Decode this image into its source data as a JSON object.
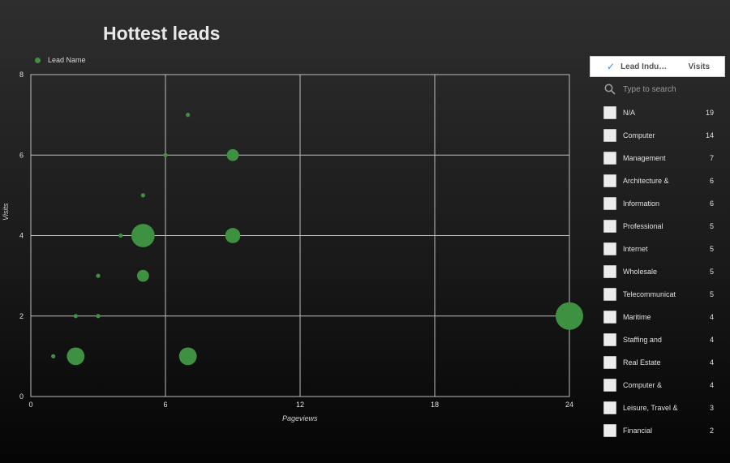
{
  "chart_data": {
    "type": "scatter",
    "title": "Hottest leads",
    "xlabel": "Pageviews",
    "ylabel": "Visits",
    "xlim": [
      0,
      24
    ],
    "ylim": [
      0,
      8
    ],
    "xticks": [
      "0",
      "6",
      "12",
      "18",
      "24"
    ],
    "yticks": [
      "0",
      "2",
      "4",
      "6",
      "8"
    ],
    "grid": true,
    "legend_position": "top-left",
    "series": [
      {
        "name": "Lead Name",
        "color": "#3d9140",
        "points": [
          {
            "x": 1,
            "y": 1,
            "size": 1
          },
          {
            "x": 2,
            "y": 1,
            "size": 4
          },
          {
            "x": 2,
            "y": 2,
            "size": 1
          },
          {
            "x": 3,
            "y": 2,
            "size": 1
          },
          {
            "x": 3,
            "y": 3,
            "size": 1
          },
          {
            "x": 4,
            "y": 4,
            "size": 1
          },
          {
            "x": 5,
            "y": 4,
            "size": 7
          },
          {
            "x": 5,
            "y": 3,
            "size": 2
          },
          {
            "x": 5,
            "y": 5,
            "size": 1
          },
          {
            "x": 6,
            "y": 6,
            "size": 1
          },
          {
            "x": 7,
            "y": 7,
            "size": 1
          },
          {
            "x": 7,
            "y": 1,
            "size": 4
          },
          {
            "x": 9,
            "y": 6,
            "size": 2
          },
          {
            "x": 9,
            "y": 4,
            "size": 3
          },
          {
            "x": 24,
            "y": 2,
            "size": 10
          }
        ]
      }
    ]
  },
  "legend": {
    "label": "Lead Name",
    "color": "#3d9140"
  },
  "filter": {
    "header_dimension": "Lead Indu…",
    "header_metric": "Visits",
    "search_placeholder": "Type to search",
    "items": [
      {
        "label": "N/A",
        "count": "19"
      },
      {
        "label": "Computer",
        "count": "14"
      },
      {
        "label": "Management",
        "count": "7"
      },
      {
        "label": "Architecture &",
        "count": "6"
      },
      {
        "label": "Information",
        "count": "6"
      },
      {
        "label": "Professional",
        "count": "5"
      },
      {
        "label": "Internet",
        "count": "5"
      },
      {
        "label": "Wholesale",
        "count": "5"
      },
      {
        "label": "Telecommunicat",
        "count": "5"
      },
      {
        "label": "Maritime",
        "count": "4"
      },
      {
        "label": "Staffing and",
        "count": "4"
      },
      {
        "label": "Real Estate",
        "count": "4"
      },
      {
        "label": "Computer &",
        "count": "4"
      },
      {
        "label": "Leisure, Travel &",
        "count": "3"
      },
      {
        "label": "Financial",
        "count": "2"
      }
    ]
  }
}
